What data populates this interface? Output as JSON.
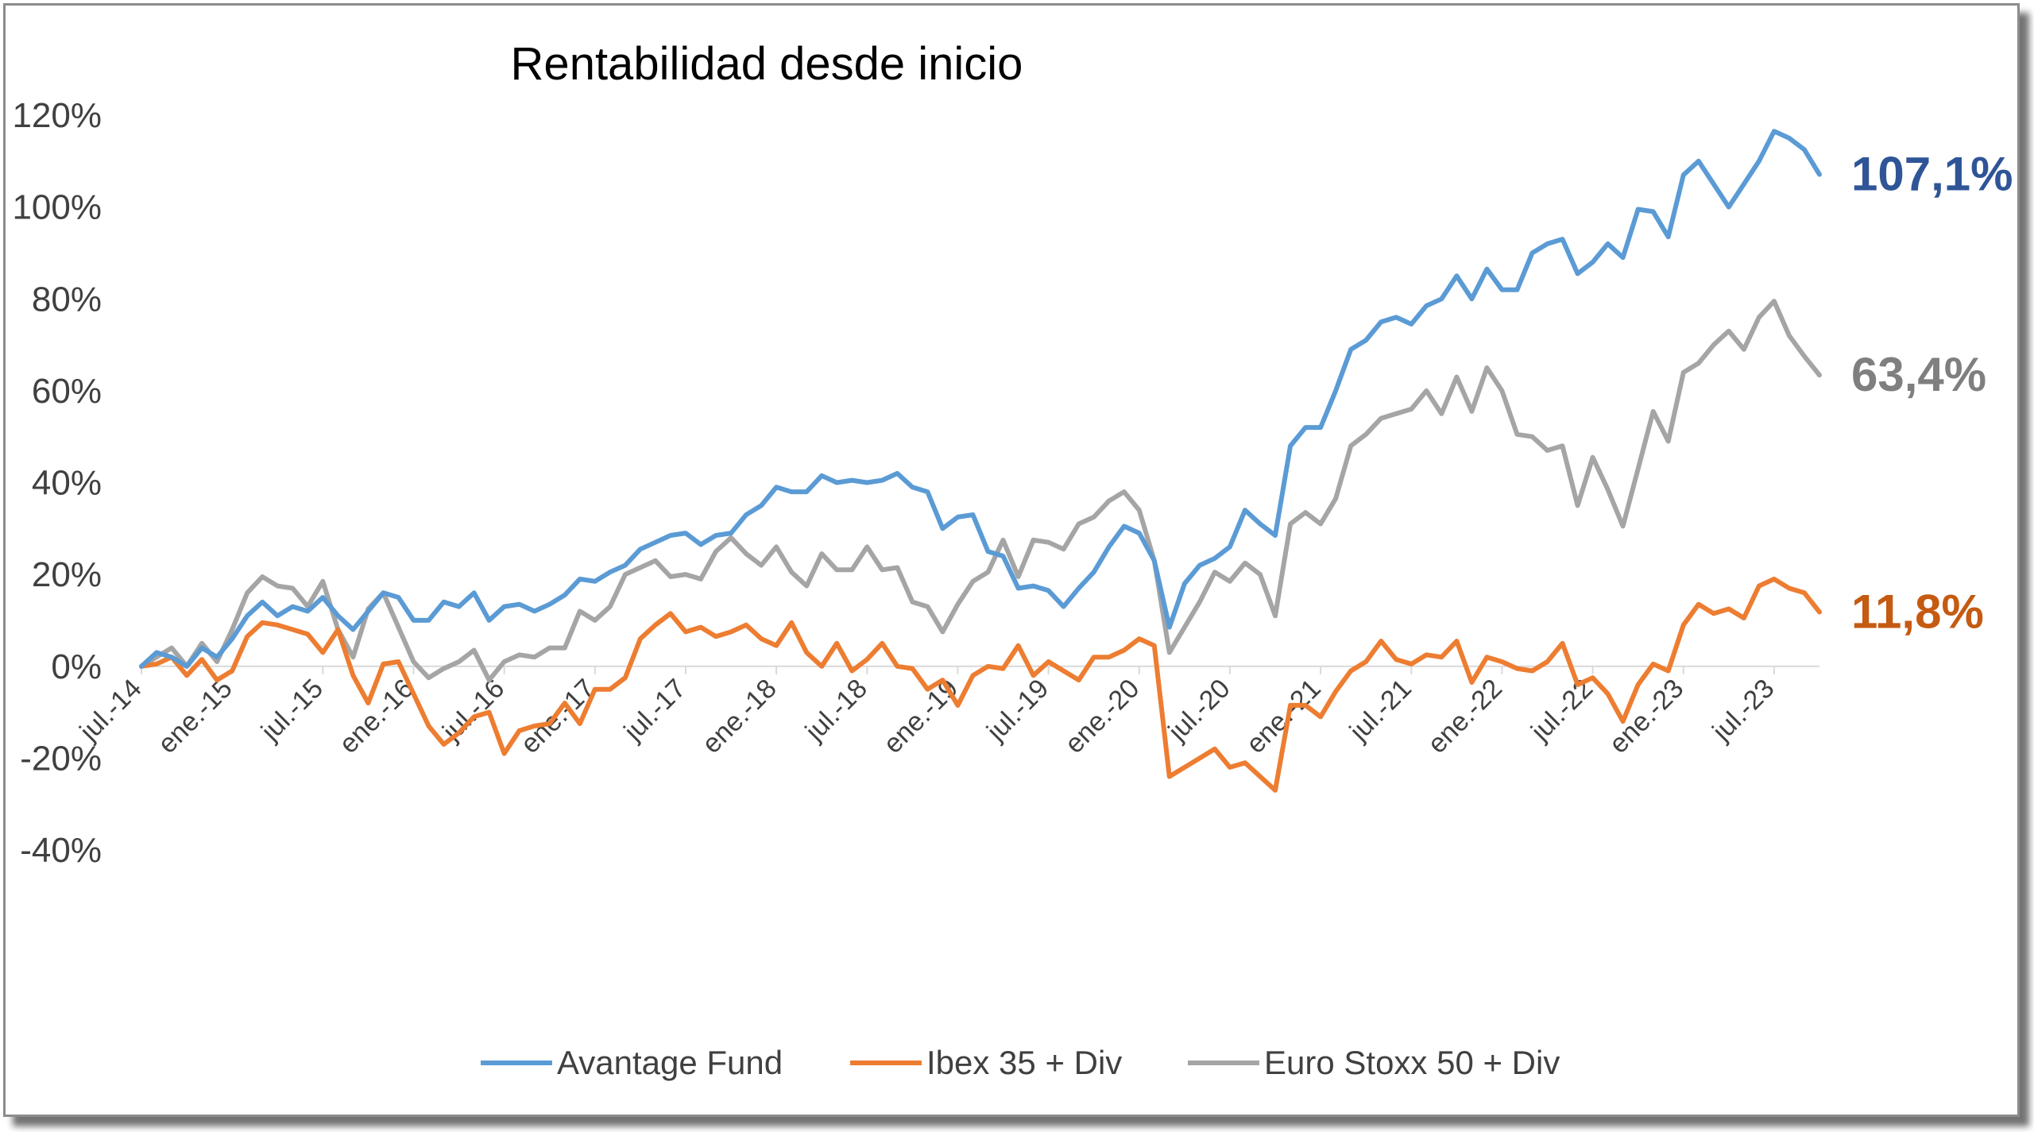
{
  "chart_data": {
    "type": "line",
    "title": "Rentabilidad desde inicio",
    "ylim": [
      -40,
      120
    ],
    "yticks": [
      "120%",
      "100%",
      "80%",
      "60%",
      "40%",
      "20%",
      "0%",
      "-20%",
      "-40%"
    ],
    "ytick_values": [
      120,
      100,
      80,
      60,
      40,
      20,
      0,
      -20,
      -40
    ],
    "xticks": [
      "jul.-14",
      "ene.-15",
      "jul.-15",
      "ene.-16",
      "jul.-16",
      "ene.-17",
      "jul.-17",
      "ene.-18",
      "jul.-18",
      "ene.-19",
      "jul.-19",
      "ene.-20",
      "jul.-20",
      "ene.-21",
      "jul.-21",
      "ene.-22",
      "jul.-22",
      "ene.-23",
      "jul.-23"
    ],
    "x_start": "2014-07",
    "x_end": "2023-10",
    "legend_position": "bottom",
    "grid": false,
    "series": [
      {
        "name": "Avantage Fund",
        "color": "#5B9BD5",
        "end_label": "107,1%",
        "end_label_color": "#2F5597",
        "values": [
          0,
          3,
          2,
          0,
          4,
          2,
          6,
          11,
          14,
          11,
          13,
          12,
          15,
          11,
          8,
          12,
          16,
          15,
          10,
          10,
          14,
          13,
          16,
          10,
          13,
          13.5,
          12,
          13.5,
          15.5,
          19,
          18.5,
          20.5,
          22,
          25.5,
          27,
          28.5,
          29,
          26.5,
          28.5,
          29,
          33,
          35,
          39,
          38,
          38,
          41.5,
          40,
          40.5,
          40,
          40.5,
          42,
          39,
          38,
          30,
          32.5,
          33,
          25,
          24,
          17,
          17.5,
          16.5,
          13,
          17,
          20.5,
          26,
          30.5,
          29,
          23,
          8.5,
          18,
          22,
          23.5,
          26,
          34,
          31,
          28.5,
          48,
          52,
          52,
          60,
          69,
          71,
          75,
          76,
          74.5,
          78.5,
          80,
          85,
          80,
          86.5,
          82,
          82,
          90,
          92,
          93,
          85.5,
          88,
          92,
          89,
          99.5,
          99,
          93.5,
          107,
          110,
          105,
          100,
          105,
          110,
          116.5,
          115,
          112.5,
          107.1
        ]
      },
      {
        "name": "Ibex 35 + Div",
        "color": "#ED7D31",
        "end_label": "11,8%",
        "end_label_color": "#C55A11",
        "values": [
          0,
          0.5,
          2,
          -2,
          1.5,
          -3,
          -1,
          6.5,
          9.5,
          9,
          8,
          7,
          3,
          8,
          -2,
          -8,
          0.5,
          1,
          -6,
          -13,
          -17,
          -14.5,
          -11,
          -10,
          -19,
          -14,
          -13,
          -12.5,
          -8,
          -12.5,
          -5,
          -5,
          -2.5,
          6,
          9,
          11.5,
          7.5,
          8.5,
          6.5,
          7.5,
          9,
          6,
          4.5,
          9.5,
          3,
          0,
          5,
          -1,
          1.5,
          5,
          0,
          -0.5,
          -5,
          -3,
          -8.5,
          -2,
          0,
          -0.5,
          4.5,
          -2,
          1,
          -1,
          -3,
          2,
          2,
          3.5,
          6,
          4.5,
          -24,
          -22,
          -20,
          -18,
          -22,
          -21,
          -24,
          -27,
          -8.5,
          -8.5,
          -11,
          -5.5,
          -1,
          1,
          5.5,
          1.5,
          0.5,
          2.5,
          2,
          5.5,
          -3.5,
          2,
          1,
          -0.5,
          -1,
          1,
          5,
          -4,
          -2.5,
          -6,
          -12,
          -4,
          0.5,
          -1,
          9,
          13.5,
          11.5,
          12.5,
          10.5,
          17.5,
          19,
          17,
          16,
          11.8
        ]
      },
      {
        "name": "Euro Stoxx 50 + Div",
        "color": "#A5A5A5",
        "end_label": "63,4%",
        "end_label_color": "#7F7F7F",
        "values": [
          0,
          2,
          4,
          0,
          5,
          1,
          8,
          16,
          19.5,
          17.5,
          17,
          13,
          18.5,
          8,
          2,
          12.5,
          16,
          8.5,
          1,
          -2.5,
          -0.5,
          1,
          3.5,
          -3,
          1,
          2.5,
          2,
          4,
          4,
          12,
          10,
          13,
          20,
          21.5,
          23,
          19.5,
          20,
          19,
          25,
          28,
          24.5,
          22,
          26,
          20.5,
          17.5,
          24.5,
          21,
          21,
          26,
          21,
          21.5,
          14,
          13,
          7.5,
          13.5,
          18.5,
          20.5,
          27.5,
          19.5,
          27.5,
          27,
          25.5,
          31,
          32.5,
          36,
          38,
          34,
          23,
          3,
          8.5,
          14,
          20.5,
          18.5,
          22.5,
          20,
          11,
          31,
          33.5,
          31,
          36.5,
          48,
          50.5,
          54,
          55,
          56,
          60,
          55,
          63,
          55.5,
          65,
          60,
          50.5,
          50,
          47,
          48,
          35,
          45.5,
          38.5,
          30.5,
          43,
          55.5,
          49,
          64,
          66,
          70,
          73,
          69,
          76,
          79.5,
          72,
          67.5,
          63.4
        ]
      }
    ]
  }
}
